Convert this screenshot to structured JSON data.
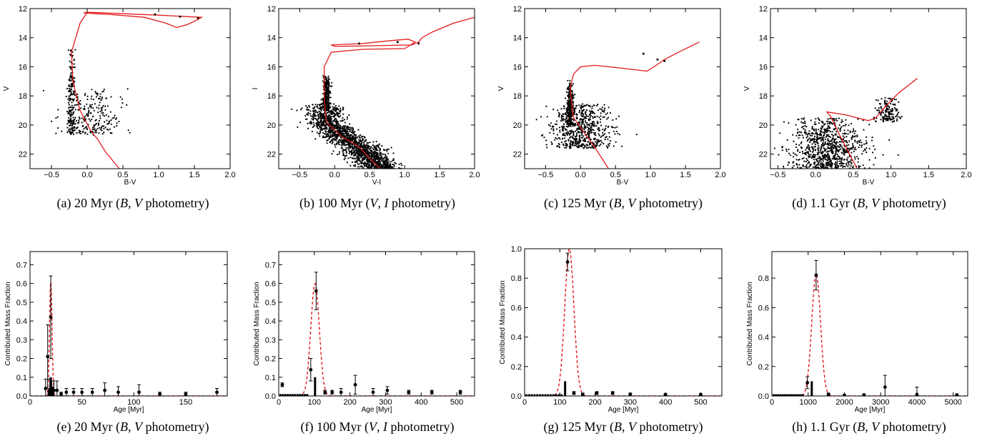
{
  "panels": [
    {
      "id": "a",
      "caption": "(a)  20 Myr (B, V photometry)"
    },
    {
      "id": "b",
      "caption": "(b)  100 Myr (V, I photometry)"
    },
    {
      "id": "c",
      "caption": "(c)  125 Myr (B, V photometry)"
    },
    {
      "id": "d",
      "caption": "(d)  1.1 Gyr (B, V photometry)"
    },
    {
      "id": "e",
      "caption": "(e)  20 Myr (B, V photometry)"
    },
    {
      "id": "f",
      "caption": "(f)  100 Myr (V, I photometry)"
    },
    {
      "id": "g",
      "caption": "(g)  125 Myr (B, V photometry)"
    },
    {
      "id": "h",
      "caption": "(h)  1.1 Gyr (B, V photometry)"
    }
  ],
  "chart_data": [
    {
      "panel": "a",
      "type": "scatter",
      "title": "",
      "xlabel": "B-V",
      "ylabel": "V",
      "xlim": [
        -0.8,
        2.0
      ],
      "ylim": [
        23,
        12
      ],
      "y_inverted": true,
      "xticks": [
        -0.5,
        0.0,
        0.5,
        1.0,
        1.5,
        2.0
      ],
      "xticklabels": [
        "−0.5",
        "0.0",
        "0.5",
        "1.0",
        "1.5",
        "2.0"
      ],
      "yticks": [
        12,
        14,
        16,
        18,
        20,
        22
      ],
      "yticklabels": [
        "12",
        "14",
        "16",
        "18",
        "20",
        "22"
      ],
      "point_cloud": {
        "count": 420,
        "clusters": [
          {
            "weight": 0.45,
            "x_center": -0.22,
            "x_spread": 0.05,
            "y_min": 14.7,
            "y_max": 20.6
          },
          {
            "weight": 0.55,
            "x_center": 0.05,
            "x_spread": 0.38,
            "y_min": 17.5,
            "y_max": 20.7
          }
        ]
      },
      "isochrone": [
        [
          0.0,
          12.25
        ],
        [
          1.0,
          12.45
        ],
        [
          1.6,
          12.6
        ],
        [
          1.55,
          12.75
        ],
        [
          1.4,
          13.1
        ],
        [
          1.25,
          13.3
        ],
        [
          1.1,
          13.0
        ],
        [
          0.8,
          12.6
        ],
        [
          0.3,
          12.4
        ],
        [
          -0.05,
          12.3
        ],
        [
          0.0,
          12.25
        ],
        [
          -0.1,
          13.0
        ],
        [
          -0.22,
          15.0
        ],
        [
          -0.2,
          17.0
        ],
        [
          -0.1,
          19.0
        ],
        [
          0.05,
          20.4
        ],
        [
          0.15,
          21.0
        ],
        [
          0.25,
          21.8
        ],
        [
          0.45,
          23.0
        ]
      ],
      "isochrone_points": [
        [
          0.95,
          12.4
        ],
        [
          1.3,
          12.55
        ],
        [
          1.55,
          12.65
        ]
      ]
    },
    {
      "panel": "b",
      "type": "scatter",
      "title": "",
      "xlabel": "V-I",
      "ylabel": "I",
      "xlim": [
        -0.8,
        2.0
      ],
      "ylim": [
        23,
        12
      ],
      "y_inverted": true,
      "xticks": [
        -0.5,
        0.0,
        0.5,
        1.0,
        1.5,
        2.0
      ],
      "xticklabels": [
        "−0.5",
        "0.0",
        "0.5",
        "1.0",
        "1.5",
        "2.0"
      ],
      "yticks": [
        12,
        14,
        16,
        18,
        20,
        22
      ],
      "yticklabels": [
        "12",
        "14",
        "16",
        "18",
        "20",
        "22"
      ],
      "point_cloud": {
        "count": 2000,
        "clusters": [
          {
            "weight": 0.15,
            "x_center": -0.12,
            "x_spread": 0.05,
            "y_min": 16.6,
            "y_max": 19.0
          },
          {
            "weight": 0.85,
            "x_center": -0.05,
            "x_spread": 0.8,
            "y_min": 18.5,
            "y_max": 23.0,
            "follow_curve": true
          }
        ]
      },
      "isochrone": [
        [
          2.0,
          12.6
        ],
        [
          1.7,
          13.0
        ],
        [
          1.4,
          13.6
        ],
        [
          1.25,
          14.0
        ],
        [
          1.2,
          14.3
        ],
        [
          1.1,
          14.5
        ],
        [
          0.6,
          14.55
        ],
        [
          0.0,
          14.6
        ],
        [
          -0.05,
          14.5
        ],
        [
          0.4,
          14.4
        ],
        [
          0.8,
          14.2
        ],
        [
          1.05,
          14.1
        ],
        [
          1.15,
          14.3
        ],
        [
          1.0,
          14.75
        ],
        [
          0.4,
          14.8
        ],
        [
          -0.05,
          15.0
        ],
        [
          -0.15,
          16.0
        ],
        [
          -0.15,
          18.0
        ],
        [
          -0.12,
          19.8
        ],
        [
          0.1,
          20.8
        ],
        [
          0.35,
          21.5
        ],
        [
          0.5,
          22.3
        ],
        [
          0.65,
          23.0
        ]
      ],
      "isochrone_points": [
        [
          0.35,
          14.4
        ],
        [
          0.9,
          14.3
        ],
        [
          1.2,
          14.4
        ]
      ]
    },
    {
      "panel": "c",
      "type": "scatter",
      "title": "",
      "xlabel": "B-V",
      "ylabel": "V",
      "xlim": [
        -0.8,
        2.0
      ],
      "ylim": [
        23,
        12
      ],
      "y_inverted": true,
      "xticks": [
        -0.5,
        0.0,
        0.5,
        1.0,
        1.5,
        2.0
      ],
      "xticklabels": [
        "−0.5",
        "0.0",
        "0.5",
        "1.0",
        "1.5",
        "2.0"
      ],
      "yticks": [
        12,
        14,
        16,
        18,
        20,
        22
      ],
      "yticklabels": [
        "12",
        "14",
        "16",
        "18",
        "20",
        "22"
      ],
      "point_cloud": {
        "count": 900,
        "clusters": [
          {
            "weight": 0.3,
            "x_center": -0.15,
            "x_spread": 0.05,
            "y_min": 16.9,
            "y_max": 20.0
          },
          {
            "weight": 0.7,
            "x_center": 0.0,
            "x_spread": 0.45,
            "y_min": 18.5,
            "y_max": 21.6
          }
        ]
      },
      "isochrone": [
        [
          1.7,
          14.3
        ],
        [
          1.4,
          15.0
        ],
        [
          1.2,
          15.5
        ],
        [
          1.05,
          16.0
        ],
        [
          0.95,
          16.3
        ],
        [
          0.6,
          16.1
        ],
        [
          0.2,
          15.9
        ],
        [
          0.0,
          16.0
        ],
        [
          -0.1,
          16.5
        ],
        [
          -0.15,
          17.5
        ],
        [
          -0.1,
          19.5
        ],
        [
          0.05,
          20.5
        ],
        [
          0.2,
          21.5
        ],
        [
          0.4,
          23.0
        ]
      ],
      "isochrone_points": [
        [
          0.9,
          15.1
        ],
        [
          1.1,
          15.5
        ],
        [
          1.2,
          15.6
        ]
      ]
    },
    {
      "panel": "d",
      "type": "scatter",
      "title": "",
      "xlabel": "B-V",
      "ylabel": "V",
      "xlim": [
        -0.6,
        2.0
      ],
      "ylim": [
        23,
        12
      ],
      "y_inverted": true,
      "xticks": [
        -0.5,
        0.0,
        0.5,
        1.0,
        1.5,
        2.0
      ],
      "xticklabels": [
        "−0.5",
        "0.0",
        "0.5",
        "1.0",
        "1.5",
        "2.0"
      ],
      "yticks": [
        12,
        14,
        16,
        18,
        20,
        22
      ],
      "yticklabels": [
        "12",
        "14",
        "16",
        "18",
        "20",
        "22"
      ],
      "point_cloud": {
        "count": 1000,
        "clusters": [
          {
            "weight": 0.85,
            "x_center": 0.15,
            "x_spread": 0.5,
            "y_min": 19.5,
            "y_max": 23.0
          },
          {
            "weight": 0.15,
            "x_center": 0.95,
            "x_spread": 0.15,
            "y_min": 18.1,
            "y_max": 19.8
          }
        ]
      },
      "isochrone": [
        [
          1.35,
          16.8
        ],
        [
          1.1,
          17.8
        ],
        [
          0.95,
          18.6
        ],
        [
          0.8,
          19.5
        ],
        [
          0.7,
          19.7
        ],
        [
          0.4,
          19.3
        ],
        [
          0.15,
          19.1
        ],
        [
          0.2,
          19.4
        ],
        [
          0.3,
          20.5
        ],
        [
          0.4,
          21.5
        ],
        [
          0.55,
          23.0
        ]
      ],
      "isochrone_points": [
        [
          0.95,
          18.9
        ],
        [
          1.05,
          18.6
        ]
      ]
    },
    {
      "panel": "e",
      "type": "bar",
      "title": "",
      "xlabel": "Age [Myr]",
      "ylabel": "Contributed Mass Fraction",
      "xlim": [
        0,
        190
      ],
      "ylim": [
        0,
        0.77
      ],
      "xticks": [
        0,
        50,
        100,
        150
      ],
      "xticklabels": [
        "0",
        "50",
        "100",
        "150"
      ],
      "yticks": [
        0.0,
        0.1,
        0.2,
        0.3,
        0.4,
        0.5,
        0.6,
        0.7
      ],
      "yticklabels": [
        "0.0",
        "0.1",
        "0.2",
        "0.3",
        "0.4",
        "0.5",
        "0.6",
        "0.7"
      ],
      "bars": {
        "x": [
          18,
          20,
          22
        ],
        "values": [
          0.03,
          0.1,
          0.05
        ]
      },
      "points": {
        "x": [
          15,
          17,
          19,
          20,
          21,
          23,
          26,
          30,
          35,
          42,
          50,
          60,
          72,
          85,
          105,
          125,
          150,
          180
        ],
        "y": [
          0.04,
          0.21,
          0.03,
          0.42,
          0.03,
          0.03,
          0.03,
          0.01,
          0.02,
          0.02,
          0.02,
          0.02,
          0.03,
          0.02,
          0.02,
          0.01,
          0.01,
          0.02
        ],
        "err": [
          0.05,
          0.17,
          0.06,
          0.22,
          0.05,
          0.05,
          0.05,
          0.01,
          0.02,
          0.02,
          0.02,
          0.02,
          0.04,
          0.03,
          0.04,
          0.01,
          0.01,
          0.02
        ]
      },
      "model": {
        "type": "gaussian",
        "mu": 20,
        "sigma": 1.2,
        "amp": 0.62
      }
    },
    {
      "panel": "f",
      "type": "bar",
      "title": "",
      "xlabel": "Age [Myr]",
      "ylabel": "Contributed Mass Fraction",
      "xlim": [
        0,
        550
      ],
      "ylim": [
        0,
        0.77
      ],
      "xticks": [
        0,
        100,
        200,
        300,
        400,
        500
      ],
      "xticklabels": [
        "0",
        "100",
        "200",
        "300",
        "400",
        "500"
      ],
      "yticks": [
        0.0,
        0.1,
        0.2,
        0.3,
        0.4,
        0.5,
        0.6,
        0.7
      ],
      "yticklabels": [
        "0.0",
        "0.1",
        "0.2",
        "0.3",
        "0.4",
        "0.5",
        "0.6",
        "0.7"
      ],
      "bars": {
        "x": [
          102
        ],
        "values": [
          0.1
        ]
      },
      "points": {
        "x": [
          10,
          90,
          105,
          130,
          150,
          175,
          215,
          265,
          305,
          365,
          430,
          510
        ],
        "y": [
          0.06,
          0.14,
          0.56,
          0.02,
          0.02,
          0.02,
          0.06,
          0.02,
          0.03,
          0.02,
          0.02,
          0.02
        ],
        "err": [
          0.01,
          0.06,
          0.1,
          0.01,
          0.01,
          0.02,
          0.05,
          0.02,
          0.02,
          0.01,
          0.01,
          0.01
        ]
      },
      "baseline_dots": {
        "x_start": 5,
        "x_end": 80,
        "count": 12,
        "y": 0.005
      },
      "model": {
        "type": "gaussian",
        "mu": 102,
        "sigma": 12,
        "amp": 0.6
      }
    },
    {
      "panel": "g",
      "type": "bar",
      "title": "",
      "xlabel": "Age [Myr]",
      "ylabel": "Contributed Mass Fraction",
      "xlim": [
        0,
        560
      ],
      "ylim": [
        0,
        1.0
      ],
      "xticks": [
        0,
        100,
        200,
        300,
        400,
        500
      ],
      "xticklabels": [
        "0",
        "100",
        "200",
        "300",
        "400",
        "500"
      ],
      "yticks": [
        0.0,
        0.2,
        0.4,
        0.6,
        0.8,
        1.0
      ],
      "yticklabels": [
        "0.0",
        "0.2",
        "0.4",
        "0.6",
        "0.8",
        "1.0"
      ],
      "bars": {
        "x": [
          115
        ],
        "values": [
          0.1
        ]
      },
      "points": {
        "x": [
          122,
          140,
          165,
          205,
          250,
          300,
          400,
          500
        ],
        "y": [
          0.91,
          0.02,
          0.01,
          0.02,
          0.02,
          0.01,
          0.01,
          0.01
        ],
        "err": [
          0.06,
          0.01,
          0.01,
          0.01,
          0.01,
          0.01,
          0.005,
          0.005
        ]
      },
      "baseline_dots": {
        "x_start": 5,
        "x_end": 105,
        "count": 14,
        "y": 0.005
      },
      "model": {
        "type": "gaussian",
        "mu": 127,
        "sigma": 13,
        "amp": 1.0
      }
    },
    {
      "panel": "h",
      "type": "bar",
      "title": "",
      "xlabel": "Age [Myr]",
      "ylabel": "Contributed Mass Fraction",
      "xlim": [
        0,
        5400
      ],
      "ylim": [
        0,
        0.98
      ],
      "xticks": [
        0,
        1000,
        2000,
        3000,
        4000,
        5000
      ],
      "xticklabels": [
        "0",
        "1000",
        "2000",
        "3000",
        "4000",
        "5000"
      ],
      "yticks": [
        0.0,
        0.2,
        0.4,
        0.6,
        0.8
      ],
      "yticklabels": [
        "0.0",
        "0.2",
        "0.4",
        "0.6",
        "0.8"
      ],
      "bars": {
        "x": [
          1100
        ],
        "values": [
          0.1
        ]
      },
      "points": {
        "x": [
          980,
          1220,
          1560,
          2000,
          2540,
          3120,
          4000,
          5100
        ],
        "y": [
          0.09,
          0.82,
          0.01,
          0.005,
          0.005,
          0.06,
          0.01,
          0.005
        ],
        "err": [
          0.04,
          0.1,
          0.01,
          0.005,
          0.01,
          0.08,
          0.05,
          0.01
        ]
      },
      "baseline_dots": {
        "x_start": 50,
        "x_end": 850,
        "count": 14,
        "y": 0.005
      },
      "model": {
        "type": "gaussian",
        "mu": 1220,
        "sigma": 120,
        "amp": 0.83
      }
    }
  ]
}
